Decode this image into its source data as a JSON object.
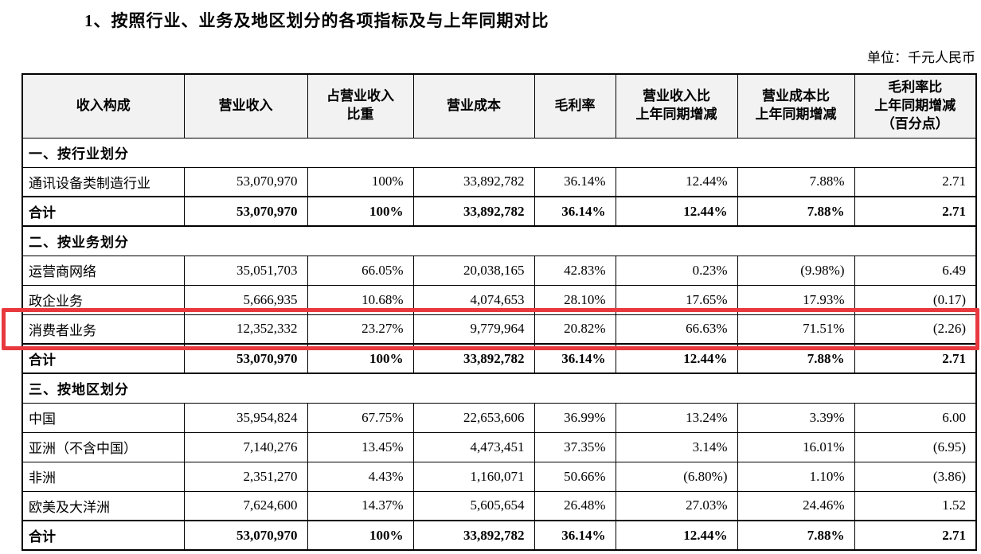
{
  "title": "1、按照行业、业务及地区划分的各项指标及与上年同期对比",
  "unit_label": "单位：千元人民币",
  "colors": {
    "highlight_box": "#e8393f",
    "header_bg": "#f2f2f2"
  },
  "table": {
    "headers": [
      {
        "lines": [
          "收入构成"
        ]
      },
      {
        "lines": [
          "营业收入"
        ]
      },
      {
        "lines": [
          "占营业收入",
          "比重"
        ]
      },
      {
        "lines": [
          "营业成本"
        ]
      },
      {
        "lines": [
          "毛利率"
        ]
      },
      {
        "lines": [
          "营业收入比",
          "上年同期增减"
        ]
      },
      {
        "lines": [
          "营业成本比",
          "上年同期增减"
        ]
      },
      {
        "lines": [
          "毛利率比",
          "上年同期增减",
          "（百分点）"
        ]
      }
    ],
    "rows": [
      {
        "type": "section",
        "label": "一、按行业划分"
      },
      {
        "type": "data",
        "cells": [
          "通讯设备类制造行业",
          "53,070,970",
          "100%",
          "33,892,782",
          "36.14%",
          "12.44%",
          "7.88%",
          "2.71"
        ]
      },
      {
        "type": "total",
        "cells": [
          "合计",
          "53,070,970",
          "100%",
          "33,892,782",
          "36.14%",
          "12.44%",
          "7.88%",
          "2.71"
        ]
      },
      {
        "type": "section",
        "label": "二、按业务划分"
      },
      {
        "type": "data",
        "cells": [
          "运营商网络",
          "35,051,703",
          "66.05%",
          "20,038,165",
          "42.83%",
          "0.23%",
          "(9.98%)",
          "6.49"
        ]
      },
      {
        "type": "data",
        "cells": [
          "政企业务",
          "5,666,935",
          "10.68%",
          "4,074,653",
          "28.10%",
          "17.65%",
          "17.93%",
          "(0.17)"
        ]
      },
      {
        "type": "data",
        "highlight": true,
        "cells": [
          "消费者业务",
          "12,352,332",
          "23.27%",
          "9,779,964",
          "20.82%",
          "66.63%",
          "71.51%",
          "(2.26)"
        ]
      },
      {
        "type": "total",
        "cells": [
          "合计",
          "53,070,970",
          "100%",
          "33,892,782",
          "36.14%",
          "12.44%",
          "7.88%",
          "2.71"
        ]
      },
      {
        "type": "section",
        "label": "三、按地区划分"
      },
      {
        "type": "data",
        "cells": [
          "中国",
          "35,954,824",
          "67.75%",
          "22,653,606",
          "36.99%",
          "13.24%",
          "3.39%",
          "6.00"
        ]
      },
      {
        "type": "data",
        "cells": [
          "亚洲（不含中国）",
          "7,140,276",
          "13.45%",
          "4,473,451",
          "37.35%",
          "3.14%",
          "16.01%",
          "(6.95)"
        ]
      },
      {
        "type": "data",
        "cells": [
          "非洲",
          "2,351,270",
          "4.43%",
          "1,160,071",
          "50.66%",
          "(6.80%)",
          "1.10%",
          "(3.86)"
        ]
      },
      {
        "type": "data",
        "cells": [
          "欧美及大洋洲",
          "7,624,600",
          "14.37%",
          "5,605,654",
          "26.48%",
          "27.03%",
          "24.46%",
          "1.52"
        ]
      },
      {
        "type": "total",
        "cells": [
          "合计",
          "53,070,970",
          "100%",
          "33,892,782",
          "36.14%",
          "12.44%",
          "7.88%",
          "2.71"
        ]
      }
    ]
  }
}
